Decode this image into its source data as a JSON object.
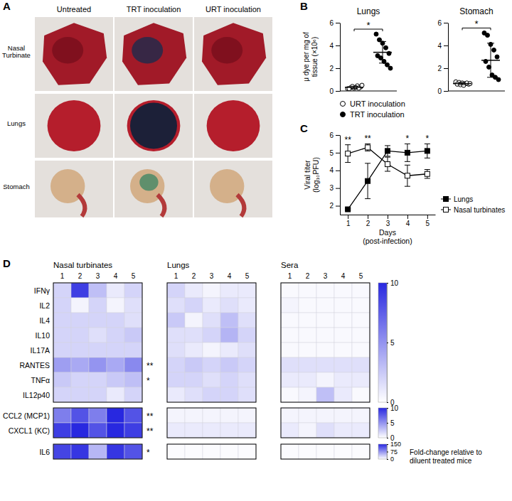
{
  "panel_a": {
    "panel_label": "A",
    "columns": [
      "Untreated",
      "TRT inoculation",
      "URT inoculation"
    ],
    "rows": [
      "Nasal Turbinate",
      "Lungs",
      "Stomach"
    ]
  },
  "chart_data": [
    {
      "type": "dot_plot",
      "panel_label": "B",
      "ylabel": "μ dye per mg of tissue (×10⁶)",
      "ylim": [
        0,
        6
      ],
      "yticks": [
        0,
        2,
        4,
        6
      ],
      "series": [
        {
          "name": "URT inoculation",
          "marker": "open circle",
          "color": "#000000"
        },
        {
          "name": "TRT inoculation",
          "marker": "circle",
          "color": "#000000"
        }
      ],
      "subplots": [
        {
          "title": "Lungs",
          "significance": "*",
          "groups": [
            {
              "values": [
                0.2,
                0.3,
                0.25,
                0.45,
                0.35,
                0.2,
                0.4,
                0.3,
                0.25,
                0.5
              ],
              "mean": 0.32,
              "sd": 0.1
            },
            {
              "values": [
                5.0,
                4.5,
                4.2,
                3.8,
                3.3,
                3.1,
                2.9,
                2.6,
                2.3,
                2.0
              ],
              "mean": 3.4,
              "sd": 0.95
            }
          ]
        },
        {
          "title": "Stomach",
          "significance": "*",
          "groups": [
            {
              "values": [
                0.8,
                0.75,
                0.7,
                0.65,
                0.6,
                0.6,
                0.55,
                0.5,
                0.7,
                0.65
              ],
              "mean": 0.65,
              "sd": 0.1
            },
            {
              "values": [
                5.1,
                4.9,
                4.1,
                3.6,
                3.0,
                2.6,
                2.1,
                1.4,
                1.2,
                1.0
              ],
              "mean": 2.7,
              "sd": 1.5
            }
          ]
        }
      ]
    },
    {
      "type": "line",
      "panel_label": "C",
      "xlabel": "Days (post-infection)",
      "ylabel": "Viral titer (log₁₀PFU)",
      "x": [
        1,
        2,
        3,
        4,
        5
      ],
      "xlim": [
        0.6,
        5.4
      ],
      "xticks": [
        1,
        2,
        3,
        4,
        5
      ],
      "ylim": [
        1.5,
        6
      ],
      "yticks": [
        2,
        3,
        4,
        5,
        6
      ],
      "legend": "lower right",
      "series": [
        {
          "name": "Lungs",
          "color": "#000000",
          "marker": "square",
          "values": [
            1.8,
            3.4,
            5.1,
            5.0,
            5.1
          ],
          "error": [
            0.05,
            1.0,
            0.3,
            0.5,
            0.4
          ]
        },
        {
          "name": "Nasal turbinates",
          "color": "#000000",
          "marker": "open square",
          "values": [
            4.95,
            5.3,
            4.35,
            3.7,
            3.8
          ],
          "error": [
            0.5,
            0.2,
            0.4,
            0.6,
            0.25
          ]
        }
      ],
      "significance": [
        "**",
        "**",
        null,
        "*",
        "*"
      ]
    },
    {
      "type": "heatmap",
      "panel_label": "D",
      "columns": [
        1,
        2,
        3,
        4,
        5
      ],
      "row_groups": [
        [
          "IFNγ",
          "IL2",
          "IL4",
          "IL10",
          "IL17A",
          "RANTES",
          "TNFα",
          "IL12p40"
        ],
        [
          "CCL2 (MCP1)",
          "CXCL1 (KC)"
        ],
        [
          "IL6"
        ]
      ],
      "significance": [
        [
          null,
          null,
          null,
          null,
          null,
          "**",
          "*",
          null
        ],
        [
          "**",
          "**"
        ],
        [
          "*"
        ]
      ],
      "colorbars": [
        {
          "range": [
            0,
            10
          ],
          "ticks": [
            0,
            5,
            10
          ]
        },
        {
          "range": [
            0,
            10
          ],
          "ticks": [
            0,
            5,
            10
          ]
        },
        {
          "range": [
            0,
            150
          ],
          "ticks": [
            0,
            75,
            150
          ]
        }
      ],
      "caption": "Fold-change relative to diluent treated mice",
      "panels": [
        {
          "title": "Nasal turbinates",
          "cells": [
            [
              [
                2,
                9,
                3,
                1,
                2
              ],
              [
                2,
                0.5,
                2,
                0.5,
                1.5
              ],
              [
                2,
                2,
                2,
                2,
                1.5
              ],
              [
                2,
                2,
                1.5,
                2,
                2.5
              ],
              [
                2,
                2,
                2,
                2,
                2
              ],
              [
                4.5,
                4,
                5,
                4,
                5.5
              ],
              [
                2.5,
                2,
                2,
                2.5,
                3
              ],
              [
                2,
                2,
                2,
                1,
                2
              ]
            ],
            [
              [
                6,
                8,
                6,
                10,
                8
              ],
              [
                9,
                10,
                8,
                10,
                9
              ]
            ],
            [
              [
                130,
                140,
                50,
                140,
                120
              ]
            ]
          ]
        },
        {
          "title": "Lungs",
          "cells": [
            [
              [
                2,
                1,
                0.5,
                1,
                1
              ],
              [
                1.5,
                2,
                1,
                1.5,
                1
              ],
              [
                2.5,
                0.5,
                1.5,
                3,
                1.5
              ],
              [
                1.5,
                1.5,
                2,
                3.5,
                2
              ],
              [
                1.5,
                1,
                0.5,
                1,
                1.5
              ],
              [
                2,
                2.5,
                2,
                2.5,
                2
              ],
              [
                2,
                2,
                1.5,
                2,
                1.5
              ],
              [
                1,
                1.5,
                2,
                2,
                1.5
              ]
            ],
            [
              [
                0.5,
                0.5,
                0.5,
                0.5,
                0.5
              ],
              [
                1,
                1,
                1,
                1,
                1
              ]
            ],
            [
              [
                3,
                3,
                3,
                3,
                3
              ]
            ]
          ]
        },
        {
          "title": "Sera",
          "cells": [
            [
              [
                0.3,
                0.3,
                0.3,
                0.3,
                0.3
              ],
              [
                0.5,
                0.3,
                0.3,
                0.3,
                0.3
              ],
              [
                0.3,
                0.3,
                0.3,
                0.3,
                0.3
              ],
              [
                0.3,
                0.3,
                0.3,
                0.3,
                0.3
              ],
              [
                0.3,
                0.3,
                0.3,
                0.3,
                0.3
              ],
              [
                1.5,
                1.5,
                1.5,
                1.5,
                1.5
              ],
              [
                1,
                1,
                0.5,
                1,
                1
              ],
              [
                0.3,
                0.5,
                3,
                1,
                0.3
              ]
            ],
            [
              [
                0.5,
                0.5,
                0.5,
                0.5,
                0.5
              ],
              [
                1,
                0.5,
                1.5,
                1,
                1
              ]
            ],
            [
              [
                3,
                3,
                3,
                3,
                3
              ]
            ]
          ]
        }
      ]
    }
  ]
}
